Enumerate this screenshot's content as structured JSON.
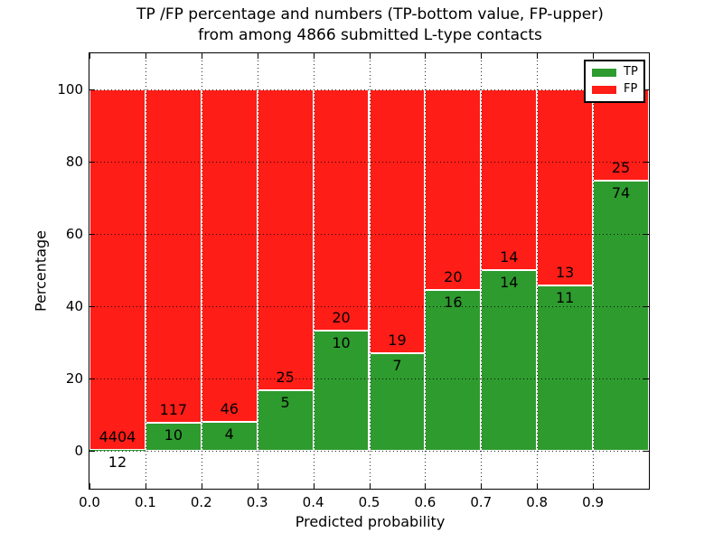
{
  "figure": {
    "title_line1": "TP /FP percentage and numbers (TP-bottom value, FP-upper)",
    "title_line2": "from among 4866 submitted L-type contacts"
  },
  "chart_data": {
    "type": "bar",
    "stacked": true,
    "bar_mode": "percent_stacked_100",
    "title": "TP /FP percentage and numbers (TP-bottom value, FP-upper) from among 4866 submitted L-type contacts",
    "xlabel": "Predicted probability",
    "ylabel": "Percentage",
    "x_tick_labels": [
      "0.0",
      "0.1",
      "0.2",
      "0.3",
      "0.4",
      "0.5",
      "0.6",
      "0.7",
      "0.8",
      "0.9"
    ],
    "x_tick_values": [
      0.0,
      0.1,
      0.2,
      0.3,
      0.4,
      0.5,
      0.6,
      0.7,
      0.8,
      0.9
    ],
    "y_tick_labels": [
      "0",
      "20",
      "40",
      "60",
      "80",
      "100"
    ],
    "y_tick_values": [
      0,
      20,
      40,
      60,
      80,
      100
    ],
    "xlim": [
      0.0,
      1.0
    ],
    "ylim": [
      -10.5,
      110
    ],
    "bins": [
      0.0,
      0.1,
      0.2,
      0.3,
      0.4,
      0.5,
      0.6,
      0.7,
      0.8,
      0.9
    ],
    "bin_width": 0.1,
    "grid": true,
    "grid_style": "dotted",
    "series": [
      {
        "name": "TP",
        "color": "#2e9b2e",
        "counts": [
          12,
          10,
          4,
          5,
          10,
          7,
          16,
          14,
          11,
          74
        ]
      },
      {
        "name": "FP",
        "color": "#ff1d17",
        "counts": [
          4404,
          117,
          46,
          25,
          20,
          19,
          20,
          14,
          13,
          25
        ]
      }
    ],
    "legend": {
      "position": "upper right",
      "entries": [
        "TP",
        "FP"
      ]
    }
  }
}
